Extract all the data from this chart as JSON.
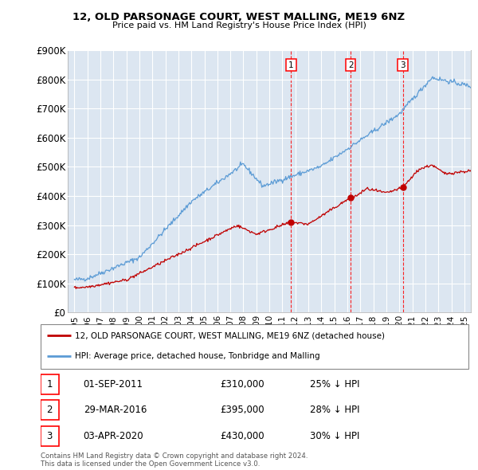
{
  "title": "12, OLD PARSONAGE COURT, WEST MALLING, ME19 6NZ",
  "subtitle": "Price paid vs. HM Land Registry's House Price Index (HPI)",
  "ylim": [
    0,
    900000
  ],
  "yticks": [
    0,
    100000,
    200000,
    300000,
    400000,
    500000,
    600000,
    700000,
    800000,
    900000
  ],
  "ytick_labels": [
    "£0",
    "£100K",
    "£200K",
    "£300K",
    "£400K",
    "£500K",
    "£600K",
    "£700K",
    "£800K",
    "£900K"
  ],
  "hpi_color": "#5b9bd5",
  "price_color": "#c00000",
  "vline_color": "#ff0000",
  "background_color": "#dce6f1",
  "grid_color": "#ffffff",
  "transactions": [
    {
      "num": 1,
      "date": "01-SEP-2011",
      "price": 310000,
      "pct": "25%",
      "x_year": 2011.67
    },
    {
      "num": 2,
      "date": "29-MAR-2016",
      "price": 395000,
      "pct": "28%",
      "x_year": 2016.25
    },
    {
      "num": 3,
      "date": "03-APR-2020",
      "price": 430000,
      "pct": "30%",
      "x_year": 2020.27
    }
  ],
  "legend_label_red": "12, OLD PARSONAGE COURT, WEST MALLING, ME19 6NZ (detached house)",
  "legend_label_blue": "HPI: Average price, detached house, Tonbridge and Malling",
  "footer": "Contains HM Land Registry data © Crown copyright and database right 2024.\nThis data is licensed under the Open Government Licence v3.0.",
  "xlim_start": 1994.5,
  "xlim_end": 2025.5,
  "xticks": [
    1995,
    1996,
    1997,
    1998,
    1999,
    2000,
    2001,
    2002,
    2003,
    2004,
    2005,
    2006,
    2007,
    2008,
    2009,
    2010,
    2011,
    2012,
    2013,
    2014,
    2015,
    2016,
    2017,
    2018,
    2019,
    2020,
    2021,
    2022,
    2023,
    2024,
    2025
  ]
}
